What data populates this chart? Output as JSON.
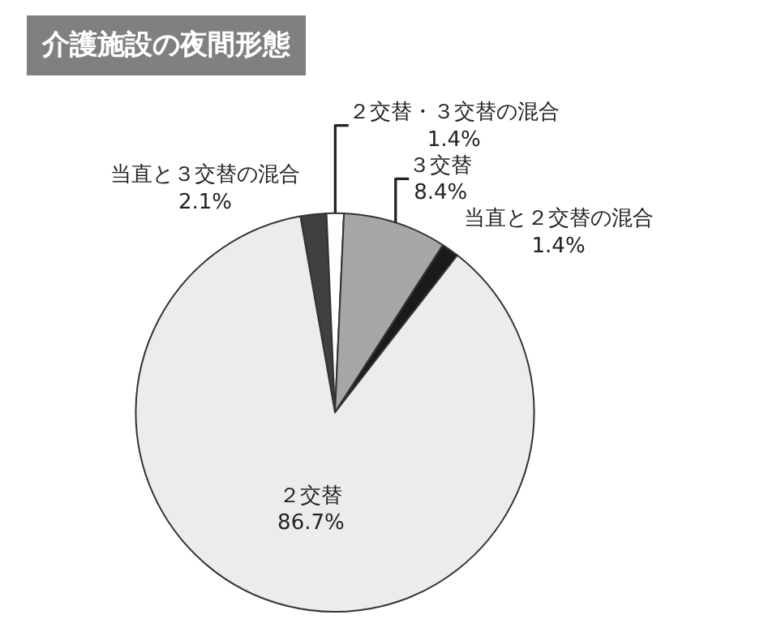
{
  "chart_data": {
    "type": "pie",
    "title": "介護施設の夜間形態",
    "categories": [
      "当直と３交替の混合",
      "２交替・３交替の混合",
      "３交替",
      "当直と２交替の混合",
      "２交替"
    ],
    "values": [
      2.1,
      1.4,
      8.4,
      1.4,
      86.7
    ],
    "colors": [
      "#404040",
      "#ffffff",
      "#a6a6a6",
      "#1a1a1a",
      "#ececec"
    ],
    "value_labels": [
      "2.1%",
      "1.4%",
      "8.4%",
      "1.4%",
      "86.7%"
    ],
    "legend": false
  }
}
